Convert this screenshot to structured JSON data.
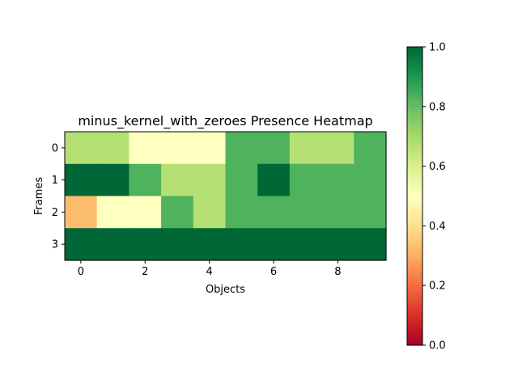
{
  "chart_data": {
    "type": "heatmap",
    "title": "minus_kernel_with_zeroes Presence Heatmap",
    "xlabel": "Objects",
    "ylabel": "Frames",
    "x_ticks": [
      0,
      2,
      4,
      6,
      8
    ],
    "y_ticks": [
      0,
      1,
      2,
      3
    ],
    "columns": 10,
    "rows": 4,
    "values": [
      [
        0.67,
        0.67,
        0.5,
        0.5,
        0.5,
        0.83,
        0.83,
        0.67,
        0.67,
        0.83
      ],
      [
        1.0,
        1.0,
        0.83,
        0.67,
        0.67,
        0.83,
        1.0,
        0.83,
        0.83,
        0.83
      ],
      [
        0.33,
        0.5,
        0.5,
        0.83,
        0.67,
        0.83,
        0.83,
        0.83,
        0.83,
        0.83
      ],
      [
        1.0,
        1.0,
        1.0,
        1.0,
        1.0,
        1.0,
        1.0,
        1.0,
        1.0,
        1.0
      ]
    ],
    "colormap": "RdYlGn",
    "vmin": 0.0,
    "vmax": 1.0,
    "colorbar_ticks": [
      "0.0",
      "0.2",
      "0.4",
      "0.6",
      "0.8",
      "1.0"
    ]
  }
}
